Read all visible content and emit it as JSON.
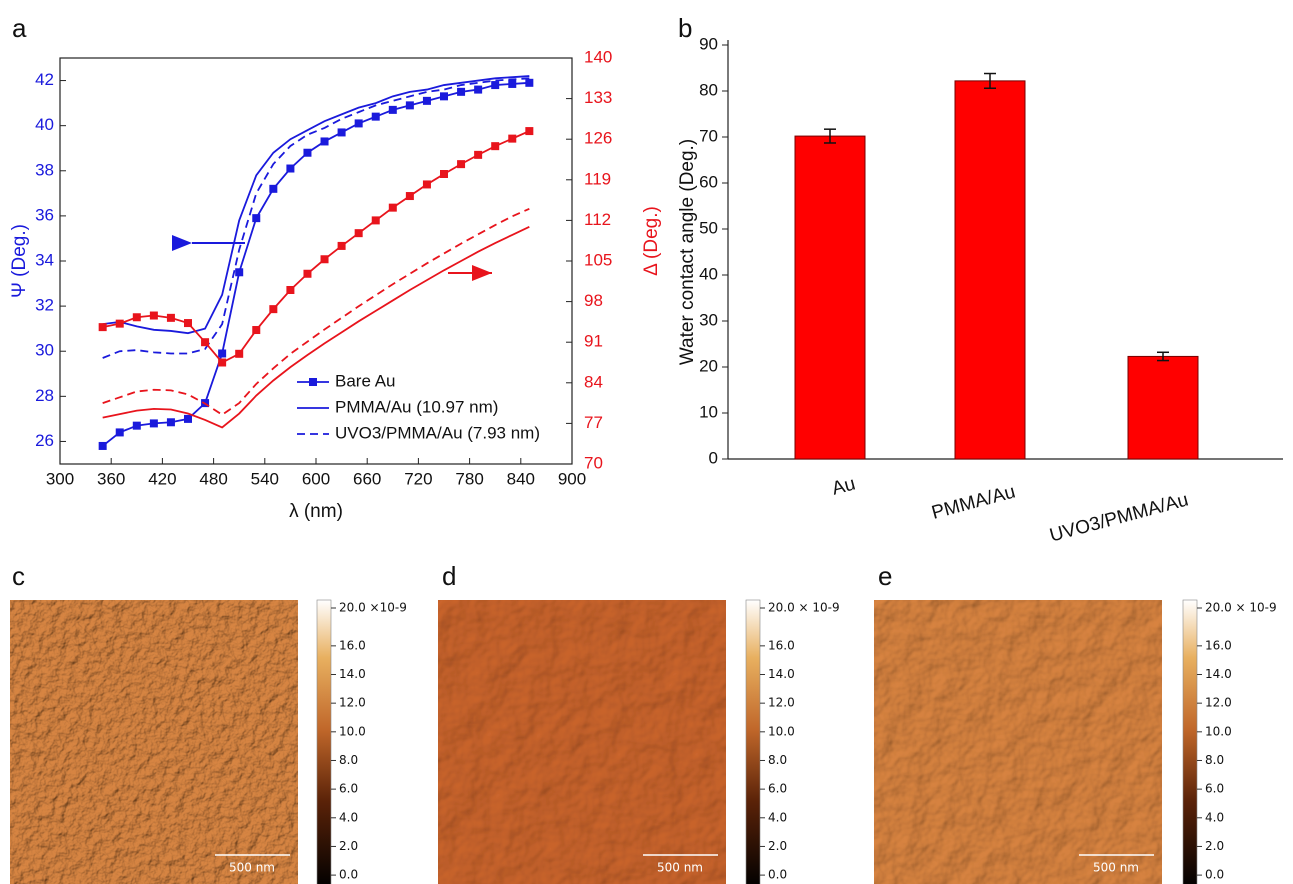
{
  "chart_data": [
    {
      "type": "line",
      "panel_label": "a",
      "x_label": "λ (nm)",
      "y_label": "Ψ (Deg.)",
      "y2_label": "Δ (Deg.)",
      "x": [
        350,
        370,
        390,
        410,
        430,
        450,
        470,
        490,
        510,
        530,
        550,
        570,
        590,
        610,
        630,
        650,
        670,
        690,
        710,
        730,
        750,
        770,
        790,
        810,
        830,
        850
      ],
      "xlim": [
        300,
        900
      ],
      "xticks": [
        300,
        360,
        420,
        480,
        540,
        600,
        660,
        720,
        780,
        840,
        900
      ],
      "ylim": [
        25,
        43
      ],
      "yticks": [
        26,
        28,
        30,
        32,
        34,
        36,
        38,
        40,
        42
      ],
      "y2lim": [
        70,
        140
      ],
      "y2ticks": [
        70,
        77,
        84,
        91,
        98,
        105,
        112,
        119,
        126,
        133,
        140
      ],
      "y_color": "#1a1adc",
      "y2_color": "#e8141c",
      "legend": "lower right",
      "series": [
        {
          "name": "Bare Au",
          "color": "#1a1adc",
          "marker": "square",
          "values": [
            25.8,
            26.4,
            26.7,
            26.8,
            26.85,
            27.0,
            27.7,
            29.9,
            33.5,
            35.9,
            37.2,
            38.1,
            38.8,
            39.3,
            39.7,
            40.1,
            40.4,
            40.7,
            40.9,
            41.1,
            41.3,
            41.5,
            41.6,
            41.8,
            41.85,
            41.9
          ]
        },
        {
          "name": "PMMA/Au (10.97 nm)",
          "color": "#1a1adc",
          "values": [
            31.2,
            31.3,
            31.1,
            30.95,
            30.9,
            30.8,
            31.0,
            32.5,
            35.8,
            37.8,
            38.8,
            39.4,
            39.8,
            40.2,
            40.5,
            40.8,
            41.0,
            41.3,
            41.5,
            41.6,
            41.8,
            41.9,
            42.0,
            42.1,
            42.15,
            42.2
          ]
        },
        {
          "name": "UVO3/PMMA/Au (7.93 nm)",
          "color": "#1a1adc",
          "dash": true,
          "values": [
            29.7,
            30.0,
            30.05,
            29.95,
            29.9,
            29.9,
            30.1,
            31.2,
            34.5,
            37.0,
            38.3,
            39.1,
            39.6,
            39.9,
            40.3,
            40.6,
            40.9,
            41.1,
            41.3,
            41.5,
            41.6,
            41.8,
            41.9,
            42.0,
            42.05,
            42.1
          ]
        },
        {
          "color": "#e8141c",
          "marker": "square",
          "axis": "y2",
          "values": [
            93.6,
            94.2,
            95.3,
            95.6,
            95.2,
            94.3,
            91,
            87.5,
            89,
            93.1,
            96.7,
            100,
            102.8,
            105.3,
            107.6,
            109.8,
            112,
            114.2,
            116.2,
            118.2,
            120,
            121.7,
            123.3,
            124.8,
            126.1,
            127.4
          ]
        },
        {
          "color": "#e8141c",
          "axis": "y2",
          "values": [
            78,
            78.6,
            79.2,
            79.5,
            79.4,
            78.7,
            77.6,
            76.3,
            78.7,
            81.8,
            84.4,
            86.7,
            88.8,
            90.8,
            92.7,
            94.6,
            96.4,
            98.2,
            100,
            101.7,
            103.4,
            105,
            106.6,
            108.1,
            109.5,
            110.9
          ]
        },
        {
          "color": "#e8141c",
          "dash": true,
          "axis": "y2",
          "values": [
            80.5,
            81.5,
            82.5,
            82.8,
            82.7,
            82,
            80.4,
            78.5,
            80.5,
            83.8,
            86.5,
            89,
            91.1,
            93.2,
            95.2,
            97.2,
            99.1,
            101,
            102.8,
            104.6,
            106.3,
            108,
            109.6,
            111.2,
            112.7,
            114
          ]
        }
      ]
    },
    {
      "type": "bar",
      "panel_label": "b",
      "y_label": "Water contact angle (Deg.)",
      "categories": [
        "Au",
        "PMMA/Au",
        "UVO3/PMMA/Au"
      ],
      "values": [
        70.2,
        82.2,
        22.3
      ],
      "errors": [
        1.5,
        1.6,
        0.9
      ],
      "color": "#ff0000",
      "ylim": [
        0,
        90
      ],
      "yticks": [
        0,
        10,
        20,
        30,
        40,
        50,
        60,
        70,
        80,
        90
      ]
    }
  ],
  "afm_images": [
    {
      "label": "c",
      "color": "#cf8040",
      "texture": 0.11,
      "clim": [
        -0.9,
        19.2
      ],
      "scale_bar": "500 nm",
      "colorbar_ticks": [
        {
          "value": 20,
          "label": "20.0 ×10-9"
        },
        {
          "value": 16,
          "label": "16.0"
        },
        {
          "value": 14,
          "label": "14.0"
        },
        {
          "value": 12,
          "label": "12.0"
        },
        {
          "value": 10,
          "label": "10.0"
        },
        {
          "value": 8,
          "label": "8.0"
        },
        {
          "value": 6,
          "label": "6.0"
        },
        {
          "value": 4,
          "label": "4.0"
        },
        {
          "value": 2,
          "label": "2.0"
        },
        {
          "value": 0,
          "label": "0.0"
        }
      ]
    },
    {
      "label": "d",
      "color": "#c2602c",
      "texture": 0.04,
      "clim": [
        -0.9,
        19.2
      ],
      "scale_bar": "500 nm",
      "colorbar_ticks": [
        {
          "value": 20,
          "label": "20.0 × 10-9"
        },
        {
          "value": 16,
          "label": "16.0"
        },
        {
          "value": 14,
          "label": "14.0"
        },
        {
          "value": 12,
          "label": "12.0"
        },
        {
          "value": 10,
          "label": "10.0"
        },
        {
          "value": 8,
          "label": "8.0"
        },
        {
          "value": 6,
          "label": "6.0"
        },
        {
          "value": 4,
          "label": "4.0"
        },
        {
          "value": 2,
          "label": "2.0"
        },
        {
          "value": 0,
          "label": "0.0"
        }
      ]
    },
    {
      "label": "e",
      "color": "#cf7e3c",
      "texture": 0.05,
      "clim": [
        -0.9,
        19.2
      ],
      "scale_bar": "500 nm",
      "colorbar_ticks": [
        {
          "value": 20,
          "label": "20.0 × 10-9"
        },
        {
          "value": 16,
          "label": "16.0"
        },
        {
          "value": 14,
          "label": "14.0"
        },
        {
          "value": 12,
          "label": "12.0"
        },
        {
          "value": 10,
          "label": "10.0"
        },
        {
          "value": 8,
          "label": "8.0"
        },
        {
          "value": 6,
          "label": "6.0"
        },
        {
          "value": 4,
          "label": "4.0"
        },
        {
          "value": 2,
          "label": "2.0"
        },
        {
          "value": 0,
          "label": "0.0"
        }
      ]
    }
  ]
}
